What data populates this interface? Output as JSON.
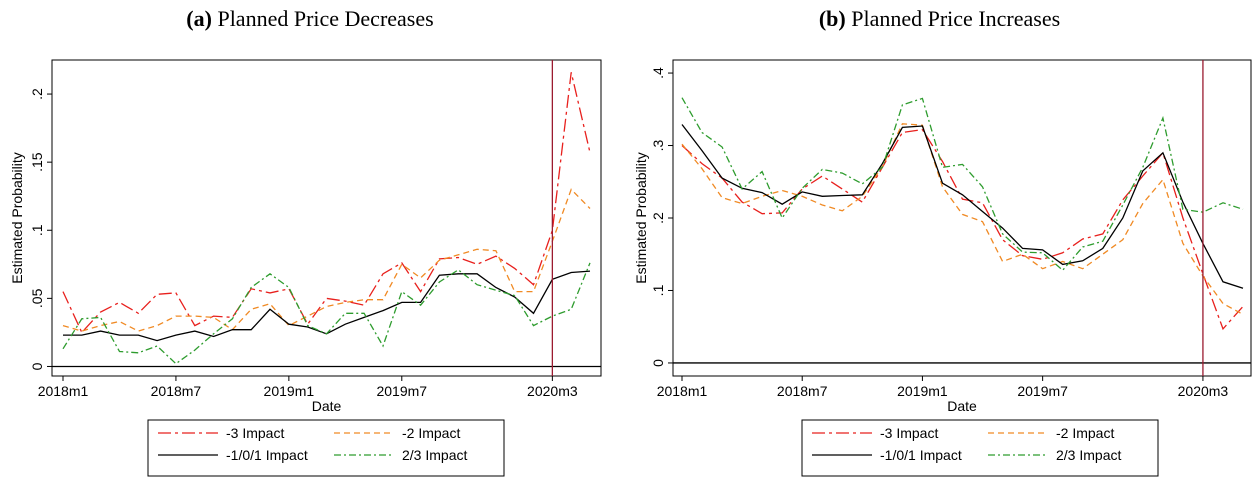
{
  "chart_data": [
    {
      "type": "line",
      "panel_label": "(a)",
      "title": "Planned Price Decreases",
      "xlabel": "Date",
      "ylabel": "Estimated Probability",
      "x": [
        "2018m1",
        "2018m2",
        "2018m3",
        "2018m4",
        "2018m5",
        "2018m6",
        "2018m7",
        "2018m8",
        "2018m9",
        "2018m10",
        "2018m11",
        "2018m12",
        "2019m1",
        "2019m2",
        "2019m3",
        "2019m4",
        "2019m5",
        "2019m6",
        "2019m7",
        "2019m8",
        "2019m9",
        "2019m10",
        "2019m11",
        "2019m12",
        "2020m1",
        "2020m2",
        "2020m3",
        "2020m4",
        "2020m5"
      ],
      "x_ticks": [
        "2018m1",
        "2018m7",
        "2019m1",
        "2019m7",
        "2020m3"
      ],
      "y_ticks": [
        {
          "v": 0,
          "label": "0"
        },
        {
          "v": 0.05,
          "label": ".05"
        },
        {
          "v": 0.1,
          "label": ".1"
        },
        {
          "v": 0.15,
          "label": ".15"
        },
        {
          "v": 0.2,
          "label": ".2"
        }
      ],
      "ylim": [
        -0.007,
        0.225
      ],
      "vline_x": "2020m3",
      "hline_y": 0,
      "legend_position": "bottom",
      "series": [
        {
          "name": "-3 Impact",
          "color": "#e8201d",
          "dash": "dashdot-long",
          "values": [
            0.055,
            0.025,
            0.04,
            0.047,
            0.039,
            0.053,
            0.054,
            0.03,
            0.037,
            0.036,
            0.057,
            0.054,
            0.057,
            0.031,
            0.05,
            0.048,
            0.045,
            0.068,
            0.076,
            0.055,
            0.079,
            0.08,
            0.075,
            0.081,
            0.072,
            0.06,
            0.1,
            0.216,
            0.157
          ]
        },
        {
          "name": "-2 Impact",
          "color": "#f08a24",
          "dash": "dash",
          "values": [
            0.03,
            0.026,
            0.03,
            0.033,
            0.026,
            0.03,
            0.037,
            0.037,
            0.036,
            0.027,
            0.042,
            0.046,
            0.03,
            0.037,
            0.044,
            0.047,
            0.049,
            0.049,
            0.075,
            0.065,
            0.078,
            0.082,
            0.086,
            0.085,
            0.055,
            0.055,
            0.092,
            0.13,
            0.116
          ]
        },
        {
          "name": "-1/0/1 Impact",
          "color": "#000000",
          "dash": "solid",
          "values": [
            0.023,
            0.023,
            0.026,
            0.023,
            0.023,
            0.019,
            0.023,
            0.026,
            0.022,
            0.027,
            0.027,
            0.042,
            0.031,
            0.029,
            0.024,
            0.031,
            0.036,
            0.041,
            0.047,
            0.047,
            0.067,
            0.068,
            0.068,
            0.058,
            0.051,
            0.039,
            0.064,
            0.069,
            0.07
          ]
        },
        {
          "name": "2/3 Impact",
          "color": "#2e9c2e",
          "dash": "dashdot",
          "values": [
            0.013,
            0.035,
            0.036,
            0.011,
            0.01,
            0.015,
            0.002,
            0.012,
            0.024,
            0.035,
            0.058,
            0.068,
            0.058,
            0.03,
            0.024,
            0.039,
            0.039,
            0.015,
            0.055,
            0.045,
            0.062,
            0.071,
            0.06,
            0.056,
            0.052,
            0.03,
            0.037,
            0.042,
            0.076
          ]
        }
      ]
    },
    {
      "type": "line",
      "panel_label": "(b)",
      "title": "Planned Price Increases",
      "xlabel": "Date",
      "ylabel": "Estimated Probability",
      "x": [
        "2018m1",
        "2018m2",
        "2018m3",
        "2018m4",
        "2018m5",
        "2018m6",
        "2018m7",
        "2018m8",
        "2018m9",
        "2018m10",
        "2018m11",
        "2018m12",
        "2019m1",
        "2019m2",
        "2019m3",
        "2019m4",
        "2019m5",
        "2019m6",
        "2019m7",
        "2019m8",
        "2019m9",
        "2019m10",
        "2019m11",
        "2019m12",
        "2020m1",
        "2020m2",
        "2020m3",
        "2020m4",
        "2020m5"
      ],
      "x_ticks": [
        "2018m1",
        "2018m7",
        "2019m1",
        "2019m7",
        "2020m3"
      ],
      "y_ticks": [
        {
          "v": 0,
          "label": "0"
        },
        {
          "v": 0.1,
          "label": ".1"
        },
        {
          "v": 0.2,
          "label": ".2"
        },
        {
          "v": 0.3,
          "label": ".3"
        },
        {
          "v": 0.4,
          "label": ".4"
        }
      ],
      "ylim": [
        -0.018,
        0.418
      ],
      "vline_x": "2020m3",
      "hline_y": 0,
      "legend_position": "bottom",
      "series": [
        {
          "name": "-3 Impact",
          "color": "#e8201d",
          "dash": "dashdot-long",
          "values": [
            0.3,
            0.275,
            0.255,
            0.222,
            0.206,
            0.207,
            0.24,
            0.258,
            0.24,
            0.222,
            0.27,
            0.318,
            0.322,
            0.278,
            0.226,
            0.221,
            0.17,
            0.148,
            0.143,
            0.152,
            0.171,
            0.178,
            0.225,
            0.258,
            0.29,
            0.2,
            0.123,
            0.047,
            0.078
          ]
        },
        {
          "name": "-2 Impact",
          "color": "#f08a24",
          "dash": "dash",
          "values": [
            0.302,
            0.268,
            0.228,
            0.22,
            0.23,
            0.238,
            0.23,
            0.218,
            0.21,
            0.23,
            0.271,
            0.33,
            0.328,
            0.243,
            0.205,
            0.195,
            0.14,
            0.15,
            0.13,
            0.14,
            0.13,
            0.15,
            0.17,
            0.22,
            0.253,
            0.165,
            0.12,
            0.082,
            0.067
          ]
        },
        {
          "name": "-1/0/1 Impact",
          "color": "#000000",
          "dash": "solid",
          "values": [
            0.329,
            0.293,
            0.255,
            0.241,
            0.235,
            0.219,
            0.236,
            0.23,
            0.231,
            0.232,
            0.275,
            0.325,
            0.327,
            0.248,
            0.232,
            0.209,
            0.186,
            0.158,
            0.156,
            0.136,
            0.141,
            0.158,
            0.2,
            0.265,
            0.29,
            0.222,
            0.165,
            0.112,
            0.103
          ]
        },
        {
          "name": "2/3 Impact",
          "color": "#2e9c2e",
          "dash": "dashdot",
          "values": [
            0.366,
            0.318,
            0.298,
            0.24,
            0.264,
            0.2,
            0.241,
            0.267,
            0.262,
            0.247,
            0.27,
            0.356,
            0.365,
            0.27,
            0.274,
            0.243,
            0.178,
            0.153,
            0.152,
            0.128,
            0.16,
            0.168,
            0.218,
            0.27,
            0.338,
            0.212,
            0.208,
            0.221,
            0.212
          ]
        }
      ]
    }
  ]
}
